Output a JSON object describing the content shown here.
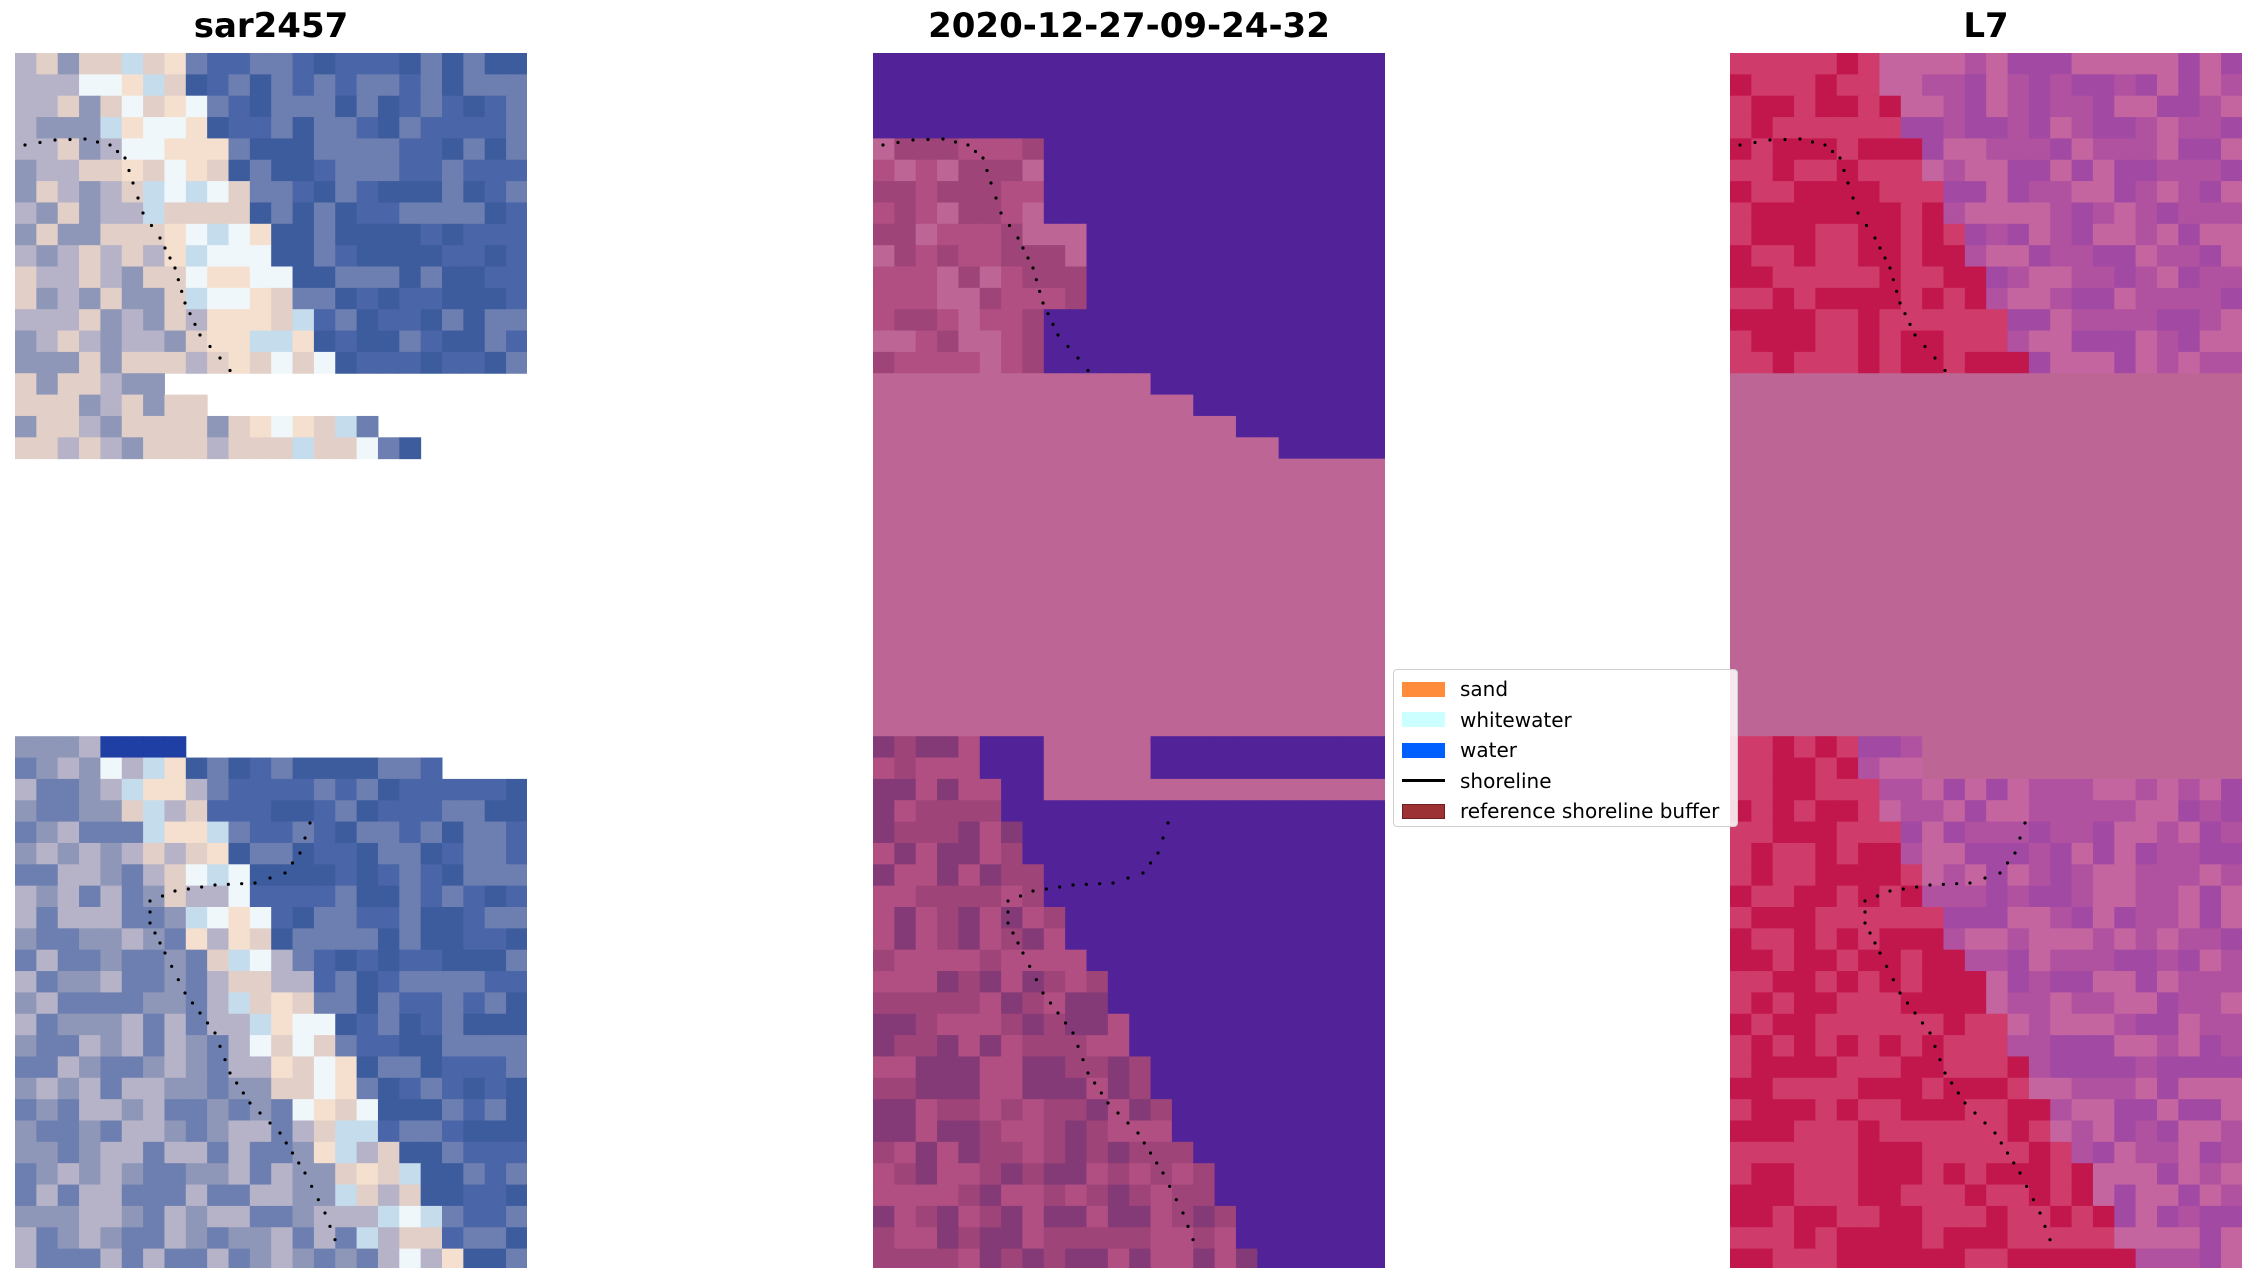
{
  "panels": [
    {
      "id": "rgb",
      "title": "sar2457",
      "palette": [
        "#3d5c9e",
        "#4a65a8",
        "#6d7fb0",
        "#8f97b9",
        "#b6b3c8",
        "#e2cfc7",
        "#f5e0cf",
        "#f0f7fb",
        "#c5dcec"
      ]
    },
    {
      "id": "classified",
      "title": "2020-12-27-09-24-32",
      "palette": [
        "#522398",
        "#bd6696",
        "#b14f82",
        "#9f4479",
        "#843a76",
        "#c93a4a",
        "#c07aa5"
      ]
    },
    {
      "id": "l7",
      "title": "L7",
      "palette": [
        "#bd6696",
        "#c2174c",
        "#cf3b6a",
        "#b152a1",
        "#a24aa3",
        "#c565a0",
        "#6c28a6"
      ]
    }
  ],
  "legend": {
    "items": [
      {
        "label": "sand",
        "color": "#ff8c3a",
        "kind": "patch"
      },
      {
        "label": "whitewater",
        "color": "#ccffff",
        "kind": "patch"
      },
      {
        "label": "water",
        "color": "#005fff",
        "kind": "patch"
      },
      {
        "label": "shoreline",
        "color": "#000000",
        "kind": "line"
      },
      {
        "label": "reference shoreline buffer",
        "color": "#9d3235",
        "kind": "patch"
      }
    ]
  }
}
